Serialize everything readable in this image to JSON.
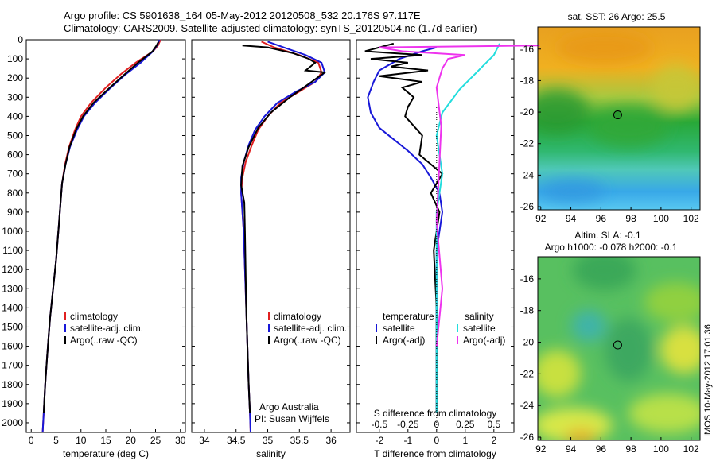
{
  "header": {
    "line1": "Argo profile: CS 5901638_164 05-May-2012 20120508_532 20.176S 97.117E",
    "line2": "Climatology: CARS2009. Satellite-adjusted climatology: synTS_20120504.nc (1.7d earlier)"
  },
  "side_label": "IMOS 10-May-2012 17:01:36",
  "colors": {
    "climatology": "#e02020",
    "satellite": "#1818d8",
    "argo": "#000000",
    "sal_satellite": "#22dddd",
    "sal_argo": "#ee33ee"
  },
  "chart_data": [
    {
      "type": "line",
      "name": "temperature-profile",
      "xlabel": "temperature (deg C)",
      "xlim": [
        -1,
        31
      ],
      "ylim": [
        2050,
        0
      ],
      "xticks": [
        "0",
        "5",
        "10",
        "15",
        "20",
        "25",
        "30"
      ],
      "yticks": [
        "0",
        "100",
        "200",
        "300",
        "400",
        "500",
        "600",
        "700",
        "800",
        "900",
        "1000",
        "1100",
        "1200",
        "1300",
        "1400",
        "1500",
        "1600",
        "1700",
        "1800",
        "1900",
        "2000"
      ],
      "legend": [
        "climatology",
        "satellite-adj. clim.",
        "Argo(..raw -QC)"
      ],
      "series": [
        {
          "name": "climatology",
          "x": [
            26,
            25.5,
            24.5,
            21,
            18,
            15,
            12,
            10,
            8.8,
            7.6,
            6.8,
            6.2,
            5.9,
            5.6,
            5.3,
            5,
            4.6,
            4.2,
            3.8,
            3.5,
            3.2,
            2.8,
            2.5,
            2.3
          ],
          "y": [
            0,
            30,
            60,
            120,
            180,
            250,
            330,
            400,
            470,
            560,
            650,
            750,
            850,
            950,
            1050,
            1150,
            1250,
            1350,
            1450,
            1550,
            1650,
            1800,
            1950,
            2050
          ]
        },
        {
          "name": "satellite-adj. clim.",
          "x": [
            25.8,
            25.3,
            24.5,
            22,
            19,
            16,
            12.8,
            10.6,
            9.2,
            7.8,
            6.9,
            6.2,
            5.9,
            5.6,
            5.3,
            5,
            4.6,
            4.2,
            3.8,
            3.5,
            3.2,
            2.8,
            2.5,
            2.3
          ],
          "y": [
            0,
            30,
            60,
            120,
            180,
            250,
            330,
            400,
            470,
            560,
            650,
            750,
            850,
            950,
            1050,
            1150,
            1250,
            1350,
            1450,
            1550,
            1650,
            1800,
            1950,
            2050
          ]
        },
        {
          "name": "Argo(..raw -QC)",
          "x": [
            25.6,
            25.2,
            24.4,
            21.5,
            18.8,
            15.8,
            12.5,
            10.4,
            9,
            7.7,
            6.9,
            6.2,
            5.9,
            5.6,
            5.3,
            5,
            4.6,
            4.2,
            3.8,
            3.5,
            3.2,
            2.8,
            2.5
          ],
          "y": [
            10,
            30,
            60,
            120,
            180,
            250,
            330,
            400,
            470,
            560,
            650,
            750,
            850,
            950,
            1050,
            1150,
            1250,
            1350,
            1450,
            1550,
            1650,
            1800,
            1950
          ]
        }
      ]
    },
    {
      "type": "line",
      "name": "salinity-profile",
      "xlabel": "salinity",
      "xlim": [
        33.8,
        36.3
      ],
      "ylim": [
        2050,
        0
      ],
      "xticks": [
        "34",
        "34.5",
        "35",
        "35.5",
        "36"
      ],
      "legend": [
        "climatology",
        "satellite-adj. clim.",
        "Argo(..raw -QC)"
      ],
      "annotation": [
        "Argo Australia",
        "PI: Susan Wijffels"
      ],
      "series": [
        {
          "name": "climatology",
          "x": [
            34.9,
            35.1,
            35.5,
            35.8,
            35.85,
            35.75,
            35.5,
            35.2,
            35,
            34.85,
            34.75,
            34.65,
            34.6,
            34.58,
            34.6,
            34.62,
            34.64,
            34.66,
            34.68,
            34.7,
            34.72,
            34.73
          ],
          "y": [
            10,
            40,
            80,
            120,
            170,
            220,
            270,
            330,
            400,
            470,
            550,
            640,
            720,
            800,
            900,
            1000,
            1200,
            1400,
            1600,
            1800,
            1950,
            2050
          ]
        },
        {
          "name": "satellite-adj. clim.",
          "x": [
            35,
            35.25,
            35.6,
            35.85,
            35.9,
            35.75,
            35.45,
            35.15,
            34.95,
            34.8,
            34.7,
            34.62,
            34.58,
            34.58,
            34.6,
            34.62,
            34.64,
            34.66,
            34.68,
            34.7,
            34.72,
            34.73
          ],
          "y": [
            10,
            40,
            80,
            120,
            170,
            220,
            270,
            330,
            400,
            470,
            550,
            640,
            720,
            800,
            900,
            1000,
            1200,
            1400,
            1600,
            1800,
            1950,
            2050
          ]
        },
        {
          "name": "Argo(..raw -QC)",
          "x": [
            34.6,
            35,
            35.4,
            35.65,
            35.75,
            35.6,
            35.9,
            35.65,
            35.35,
            35.05,
            34.85,
            34.7,
            34.6,
            34.58,
            34.63,
            34.64,
            34.65,
            34.66,
            34.68,
            34.7,
            34.72
          ],
          "y": [
            30,
            40,
            70,
            100,
            120,
            160,
            170,
            230,
            300,
            380,
            460,
            560,
            660,
            760,
            850,
            1000,
            1200,
            1400,
            1600,
            1800,
            1950
          ]
        }
      ]
    },
    {
      "type": "line",
      "name": "difference-profile",
      "xlabel": "T difference from climatology",
      "xlabel_top": "S difference from climatology",
      "xlim": [
        -2.8,
        2.7
      ],
      "ylim": [
        2050,
        0
      ],
      "xticks": [
        "-2",
        "-1",
        "0",
        "1",
        "2"
      ],
      "xticks_top": [
        "-0.5",
        "-0.25",
        "0",
        "0.25",
        "0.5"
      ],
      "legend_left": [
        "temperature",
        "satellite",
        "Argo(-adj)"
      ],
      "legend_right": [
        "salinity",
        "satellite",
        "Argo(-adj)"
      ],
      "series": [
        {
          "name": "temperature satellite",
          "x": [
            0,
            -0.5,
            -1.3,
            -2,
            -2.2,
            -2.4,
            -2.3,
            -2,
            -1.5,
            -1,
            -0.5,
            -0.2,
            0.1,
            0.2,
            0,
            0,
            0,
            0,
            0
          ],
          "y": [
            40,
            60,
            100,
            160,
            220,
            300,
            380,
            460,
            520,
            580,
            650,
            720,
            800,
            900,
            1100,
            1400,
            1600,
            1800,
            1950
          ]
        },
        {
          "name": "temperature Argo(-adj)",
          "x": [
            -1.5,
            -2.5,
            -0.5,
            -2.3,
            -1,
            -1.6,
            -0.3,
            -2,
            -0.5,
            -1.2,
            -0.8,
            -1,
            -1.1,
            -0.5,
            -0.6,
            0.2,
            -0.2,
            0.1,
            -0.1,
            0,
            0,
            0
          ],
          "y": [
            20,
            60,
            80,
            100,
            120,
            140,
            160,
            190,
            220,
            250,
            300,
            350,
            400,
            500,
            600,
            700,
            800,
            900,
            1100,
            1400,
            1700,
            1950
          ]
        },
        {
          "name": "salinity satellite",
          "x": [
            0.55,
            0.5,
            0.4,
            0.3,
            0.2,
            0.05,
            0,
            0.05,
            0,
            0,
            0,
            0
          ],
          "y": [
            20,
            80,
            140,
            200,
            260,
            380,
            500,
            700,
            900,
            1200,
            1600,
            1950
          ]
        },
        {
          "name": "salinity Argo(-adj)",
          "x": [
            0.9,
            -0.5,
            -0.3,
            0.25,
            0.1,
            0.05,
            0,
            0.04,
            0.02,
            0,
            0.05,
            0
          ],
          "y": [
            30,
            40,
            60,
            80,
            100,
            150,
            250,
            450,
            700,
            950,
            1300,
            1600
          ]
        }
      ]
    },
    {
      "type": "heatmap",
      "name": "sst-map",
      "title": "sat. SST: 26 Argo: 25.5",
      "xlim": [
        91.8,
        102.6
      ],
      "ylim": [
        -26.2,
        -14.6
      ],
      "xticks": [
        "92",
        "94",
        "96",
        "98",
        "100",
        "102"
      ],
      "yticks": [
        "-16",
        "-18",
        "-20",
        "-22",
        "-24",
        "-26"
      ],
      "argo_position": {
        "lon": 97.117,
        "lat": -20.176
      }
    },
    {
      "type": "heatmap",
      "name": "sla-map",
      "title": "Altim. SLA: -0.1",
      "subtitle": "Argo h1000: -0.078 h2000: -0.1",
      "xlim": [
        91.8,
        102.6
      ],
      "ylim": [
        -26.2,
        -14.6
      ],
      "xticks": [
        "92",
        "94",
        "96",
        "98",
        "100",
        "102"
      ],
      "yticks": [
        "-16",
        "-18",
        "-20",
        "-22",
        "-24",
        "-26"
      ],
      "argo_position": {
        "lon": 97.117,
        "lat": -20.176
      }
    }
  ]
}
